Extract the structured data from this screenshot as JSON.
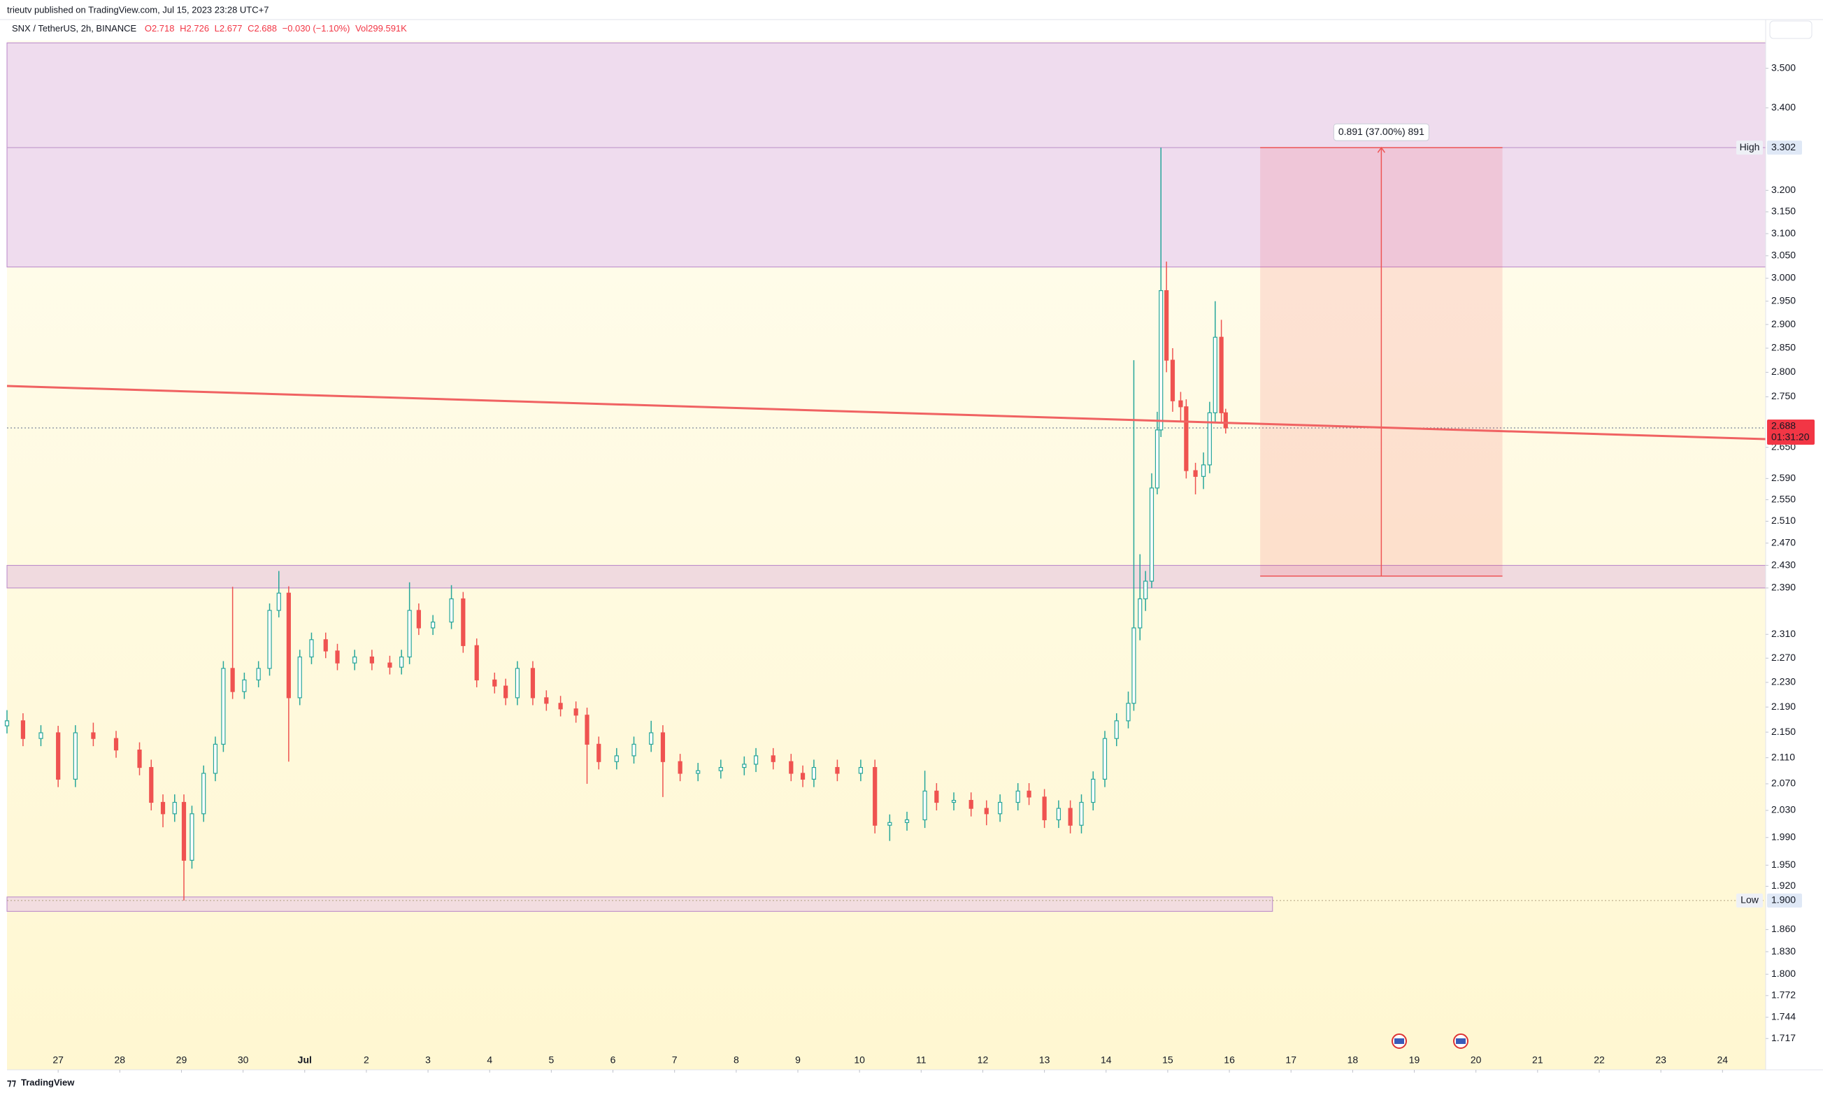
{
  "header": {
    "publisher": "trieutv published on TradingView.com, Jul 15, 2023 23:28 UTC+7"
  },
  "footer": {
    "brand": "TradingView"
  },
  "chart_data": {
    "type": "candlestick",
    "symbol": "SNX / TetherUS, 2h, BINANCE",
    "legend_values": [
      "O2.718",
      "H2.726",
      "L2.677",
      "C2.688",
      "−0.030 (−1.10%)",
      "Vol299.591K"
    ],
    "up_color": "#26a69a",
    "down_color": "#ef5350",
    "x": [
      -0.83,
      -0.57,
      -0.28,
      0,
      0.28,
      0.57,
      0.94,
      1.32,
      1.51,
      1.7,
      1.89,
      2.04,
      2.17,
      2.36,
      2.55,
      2.68,
      2.83,
      3.02,
      3.25,
      3.43,
      3.58,
      3.74,
      3.92,
      4.11,
      4.34,
      4.53,
      4.81,
      5.09,
      5.38,
      5.57,
      5.7,
      5.85,
      6.08,
      6.38,
      6.57,
      6.79,
      7.08,
      7.26,
      7.45,
      7.7,
      7.92,
      8.15,
      8.4,
      8.58,
      8.77,
      9.06,
      9.34,
      9.62,
      9.81,
      10.09,
      10.38,
      10.75,
      11.13,
      11.32,
      11.6,
      11.89,
      12.08,
      12.26,
      12.64,
      13.02,
      13.25,
      13.49,
      13.77,
      14.06,
      14.25,
      14.53,
      14.81,
      15.06,
      15.28,
      15.57,
      15.75,
      16.0,
      16.23,
      16.42,
      16.6,
      16.79,
      16.98,
      17.17,
      17.36,
      17.45,
      17.55,
      17.64,
      17.74,
      17.83,
      17.89,
      17.98,
      18.08,
      18.21,
      18.3,
      18.45,
      18.58,
      18.68,
      18.77,
      18.87,
      18.94
    ],
    "open": [
      2.16,
      2.168,
      2.14,
      2.149,
      2.077,
      2.149,
      2.14,
      2.122,
      2.095,
      2.042,
      2.025,
      2.042,
      1.957,
      2.025,
      2.086,
      2.131,
      2.253,
      2.215,
      2.234,
      2.253,
      2.351,
      2.381,
      2.205,
      2.272,
      2.301,
      2.282,
      2.262,
      2.272,
      2.262,
      2.255,
      2.272,
      2.351,
      2.321,
      2.331,
      2.371,
      2.291,
      2.234,
      2.224,
      2.205,
      2.253,
      2.205,
      2.196,
      2.187,
      2.177,
      2.131,
      2.104,
      2.113,
      2.131,
      2.149,
      2.104,
      2.086,
      2.09,
      2.095,
      2.1,
      2.113,
      2.104,
      2.086,
      2.077,
      2.095,
      2.086,
      2.095,
      2.008,
      2.012,
      2.016,
      2.059,
      2.042,
      2.045,
      2.033,
      2.025,
      2.042,
      2.059,
      2.05,
      2.016,
      2.033,
      2.008,
      2.042,
      2.077,
      2.14,
      2.168,
      2.196,
      2.321,
      2.371,
      2.402,
      2.572,
      2.684,
      2.973,
      2.825,
      2.742,
      2.73,
      2.605,
      2.594,
      2.616,
      2.718,
      2.873,
      2.718
    ],
    "high": [
      2.185,
      2.18,
      2.161,
      2.16,
      2.161,
      2.165,
      2.152,
      2.134,
      2.107,
      2.054,
      2.054,
      2.054,
      2.037,
      2.098,
      2.143,
      2.265,
      2.392,
      2.246,
      2.265,
      2.363,
      2.42,
      2.393,
      2.284,
      2.313,
      2.313,
      2.294,
      2.284,
      2.284,
      2.274,
      2.284,
      2.4,
      2.363,
      2.343,
      2.395,
      2.383,
      2.303,
      2.246,
      2.236,
      2.265,
      2.265,
      2.217,
      2.208,
      2.199,
      2.189,
      2.143,
      2.125,
      2.143,
      2.168,
      2.161,
      2.116,
      2.102,
      2.107,
      2.112,
      2.125,
      2.125,
      2.116,
      2.098,
      2.107,
      2.107,
      2.107,
      2.107,
      2.024,
      2.028,
      2.09,
      2.071,
      2.057,
      2.057,
      2.045,
      2.054,
      2.071,
      2.071,
      2.062,
      2.045,
      2.045,
      2.054,
      2.089,
      2.152,
      2.18,
      2.215,
      2.825,
      2.45,
      2.42,
      2.6,
      2.72,
      3.302,
      3.037,
      2.85,
      2.76,
      2.745,
      2.62,
      2.64,
      2.74,
      2.95,
      2.91,
      2.726
    ],
    "low": [
      2.148,
      2.128,
      2.128,
      2.065,
      2.065,
      2.128,
      2.11,
      2.083,
      2.03,
      2.005,
      2.013,
      1.9,
      1.945,
      2.013,
      2.074,
      2.119,
      2.203,
      2.203,
      2.222,
      2.241,
      2.339,
      2.104,
      2.193,
      2.26,
      2.27,
      2.25,
      2.25,
      2.25,
      2.243,
      2.243,
      2.26,
      2.309,
      2.309,
      2.319,
      2.279,
      2.222,
      2.212,
      2.193,
      2.193,
      2.193,
      2.184,
      2.175,
      2.165,
      2.07,
      2.092,
      2.092,
      2.101,
      2.119,
      2.05,
      2.074,
      2.074,
      2.078,
      2.083,
      2.088,
      2.092,
      2.074,
      2.065,
      2.065,
      2.074,
      2.074,
      1.996,
      1.985,
      2.0,
      2.004,
      2.03,
      2.03,
      2.021,
      2.008,
      2.013,
      2.03,
      2.038,
      2.004,
      2.004,
      1.996,
      1.996,
      2.03,
      2.065,
      2.128,
      2.156,
      2.184,
      2.3,
      2.35,
      2.39,
      2.56,
      2.67,
      2.8,
      2.72,
      2.7,
      2.59,
      2.56,
      2.57,
      2.6,
      2.7,
      2.7,
      2.677
    ],
    "close": [
      2.168,
      2.14,
      2.149,
      2.077,
      2.149,
      2.14,
      2.122,
      2.095,
      2.042,
      2.025,
      2.042,
      1.957,
      2.025,
      2.086,
      2.131,
      2.253,
      2.215,
      2.234,
      2.253,
      2.351,
      2.381,
      2.205,
      2.272,
      2.301,
      2.282,
      2.262,
      2.272,
      2.262,
      2.255,
      2.272,
      2.351,
      2.321,
      2.331,
      2.371,
      2.291,
      2.234,
      2.224,
      2.205,
      2.253,
      2.205,
      2.196,
      2.187,
      2.177,
      2.131,
      2.104,
      2.113,
      2.131,
      2.149,
      2.104,
      2.086,
      2.09,
      2.095,
      2.1,
      2.113,
      2.104,
      2.086,
      2.077,
      2.095,
      2.086,
      2.095,
      2.008,
      2.012,
      2.016,
      2.059,
      2.042,
      2.045,
      2.033,
      2.025,
      2.042,
      2.059,
      2.05,
      2.016,
      2.033,
      2.008,
      2.042,
      2.077,
      2.14,
      2.168,
      2.196,
      2.321,
      2.371,
      2.402,
      2.572,
      2.684,
      2.973,
      2.825,
      2.742,
      2.73,
      2.605,
      2.594,
      2.616,
      2.718,
      2.873,
      2.718,
      2.688
    ],
    "xlim": [
      -0.83,
      27.7
    ],
    "xticks": [
      {
        "value": 0,
        "label": "27"
      },
      {
        "value": 1,
        "label": "28"
      },
      {
        "value": 2,
        "label": "29"
      },
      {
        "value": 3,
        "label": "30"
      },
      {
        "value": 4,
        "label": "Jul"
      },
      {
        "value": 5,
        "label": "2"
      },
      {
        "value": 6,
        "label": "3"
      },
      {
        "value": 7,
        "label": "4"
      },
      {
        "value": 8,
        "label": "5"
      },
      {
        "value": 9,
        "label": "6"
      },
      {
        "value": 10,
        "label": "7"
      },
      {
        "value": 11,
        "label": "8"
      },
      {
        "value": 12,
        "label": "9"
      },
      {
        "value": 13,
        "label": "10"
      },
      {
        "value": 14,
        "label": "11"
      },
      {
        "value": 15,
        "label": "12"
      },
      {
        "value": 16,
        "label": "13"
      },
      {
        "value": 17,
        "label": "14"
      },
      {
        "value": 18,
        "label": "15"
      },
      {
        "value": 19,
        "label": "16"
      },
      {
        "value": 20,
        "label": "17"
      },
      {
        "value": 21,
        "label": "18"
      },
      {
        "value": 22,
        "label": "19"
      },
      {
        "value": 23,
        "label": "20"
      },
      {
        "value": 24,
        "label": "21"
      },
      {
        "value": 25,
        "label": "22"
      },
      {
        "value": 26,
        "label": "23"
      },
      {
        "value": 27,
        "label": "24"
      }
    ],
    "ylim": [
      1.678,
      3.572
    ],
    "log_scale": true,
    "grid": false,
    "yticks": [
      {
        "value": 3.5,
        "label": "3.500"
      },
      {
        "value": 3.4,
        "label": "3.400"
      },
      {
        "value": 3.2,
        "label": "3.200"
      },
      {
        "value": 3.15,
        "label": "3.150"
      },
      {
        "value": 3.1,
        "label": "3.100"
      },
      {
        "value": 3.05,
        "label": "3.050"
      },
      {
        "value": 3.0,
        "label": "3.000"
      },
      {
        "value": 2.95,
        "label": "2.950"
      },
      {
        "value": 2.9,
        "label": "2.900"
      },
      {
        "value": 2.85,
        "label": "2.850"
      },
      {
        "value": 2.8,
        "label": "2.800"
      },
      {
        "value": 2.75,
        "label": "2.750"
      },
      {
        "value": 2.65,
        "label": "2.650"
      },
      {
        "value": 2.59,
        "label": "2.590"
      },
      {
        "value": 2.55,
        "label": "2.550"
      },
      {
        "value": 2.51,
        "label": "2.510"
      },
      {
        "value": 2.47,
        "label": "2.470"
      },
      {
        "value": 2.43,
        "label": "2.430"
      },
      {
        "value": 2.39,
        "label": "2.390"
      },
      {
        "value": 2.31,
        "label": "2.310"
      },
      {
        "value": 2.27,
        "label": "2.270"
      },
      {
        "value": 2.23,
        "label": "2.230"
      },
      {
        "value": 2.19,
        "label": "2.190"
      },
      {
        "value": 2.15,
        "label": "2.150"
      },
      {
        "value": 2.11,
        "label": "2.110"
      },
      {
        "value": 2.07,
        "label": "2.070"
      },
      {
        "value": 2.03,
        "label": "2.030"
      },
      {
        "value": 1.99,
        "label": "1.990"
      },
      {
        "value": 1.95,
        "label": "1.950"
      },
      {
        "value": 1.92,
        "label": "1.920"
      },
      {
        "value": 1.86,
        "label": "1.860"
      },
      {
        "value": 1.83,
        "label": "1.830"
      },
      {
        "value": 1.8,
        "label": "1.800"
      },
      1.772,
      1.744,
      1.717
    ],
    "zones": [
      {
        "top": 3.566,
        "bottom": 3.302,
        "color": "#efdcee"
      },
      {
        "top": 3.302,
        "bottom": 3.025,
        "color": "#efdcee"
      },
      {
        "top": 2.43,
        "bottom": 2.39,
        "color": "#f0dadf"
      },
      {
        "top": 1.905,
        "bottom": 1.885,
        "color": "#f2dde0",
        "x_end": 19.7
      }
    ],
    "trend_line": {
      "x": [
        -0.83,
        27.7
      ],
      "y": [
        2.772,
        2.666
      ],
      "color": "#f06262"
    },
    "measure": {
      "x": [
        19.5,
        23.43
      ],
      "y": [
        2.411,
        3.302
      ],
      "label": "0.891 (37.00%) 891"
    },
    "high_marker": {
      "name": "High",
      "value": 3.302
    },
    "low_marker": {
      "name": "Low",
      "value": 1.9,
      "label": "1.900"
    },
    "last_price": {
      "value": 2.688,
      "countdown": "01:31:20"
    }
  }
}
